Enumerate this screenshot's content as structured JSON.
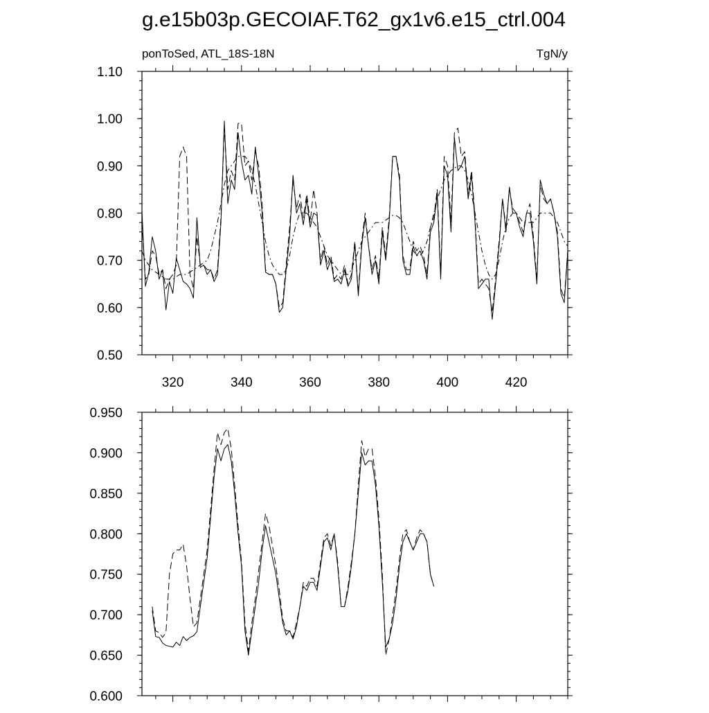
{
  "title": "g.e15b03p.GECOIAF.T62_gx1v6.e15_ctrl.004",
  "chart_data": [
    {
      "type": "line",
      "left_label": "ponToSed, ATL_18S-18N",
      "right_label": "TgN/y",
      "xlim": [
        311,
        435
      ],
      "ylim": [
        0.5,
        1.1
      ],
      "xticks": [
        320,
        340,
        360,
        380,
        400,
        420
      ],
      "xtick_labels": [
        "320",
        "340",
        "360",
        "380",
        "400",
        "420"
      ],
      "yticks": [
        0.5,
        0.6,
        0.7,
        0.8,
        0.9,
        1.0,
        1.1
      ],
      "ytick_labels": [
        "0.50",
        "0.60",
        "0.70",
        "0.80",
        "0.90",
        "1.00",
        "1.10"
      ],
      "x_start": 311,
      "x_step": 1,
      "series": [
        {
          "style": "solid",
          "values": [
            0.805,
            0.645,
            0.675,
            0.75,
            0.72,
            0.66,
            0.68,
            0.595,
            0.655,
            0.63,
            0.705,
            0.68,
            0.655,
            0.65,
            0.64,
            0.62,
            0.79,
            0.685,
            0.69,
            0.67,
            0.68,
            0.655,
            0.67,
            0.78,
            0.995,
            0.82,
            0.87,
            0.85,
            0.97,
            0.91,
            0.87,
            0.88,
            0.84,
            0.94,
            0.88,
            0.8,
            0.675,
            0.67,
            0.67,
            0.65,
            0.59,
            0.6,
            0.68,
            0.75,
            0.88,
            0.8,
            0.82,
            0.775,
            0.83,
            0.77,
            0.8,
            0.795,
            0.69,
            0.72,
            0.68,
            0.7,
            0.655,
            0.66,
            0.65,
            0.68,
            0.645,
            0.66,
            0.735,
            0.625,
            0.73,
            0.79,
            0.73,
            0.67,
            0.7,
            0.65,
            0.76,
            0.7,
            0.78,
            0.92,
            0.92,
            0.87,
            0.7,
            0.67,
            0.67,
            0.73,
            0.71,
            0.72,
            0.7,
            0.66,
            0.76,
            0.78,
            0.84,
            0.66,
            0.9,
            0.88,
            0.76,
            0.96,
            0.89,
            0.9,
            0.92,
            0.83,
            0.88,
            0.78,
            0.64,
            0.65,
            0.66,
            0.66,
            0.575,
            0.65,
            0.73,
            0.83,
            0.76,
            0.855,
            0.8,
            0.8,
            0.77,
            0.75,
            0.8,
            0.8,
            0.74,
            0.65,
            0.87,
            0.84,
            0.82,
            0.83,
            0.8,
            0.75,
            0.63,
            0.61,
            0.72
          ]
        },
        {
          "style": "dashed",
          "values": [
            0.78,
            0.66,
            0.67,
            0.72,
            0.71,
            0.67,
            0.68,
            0.64,
            0.66,
            0.67,
            0.69,
            0.92,
            0.94,
            0.92,
            0.67,
            0.64,
            0.75,
            0.69,
            0.69,
            0.68,
            0.68,
            0.66,
            0.68,
            0.79,
            0.98,
            0.85,
            0.89,
            0.87,
            0.99,
            0.99,
            0.9,
            0.91,
            0.87,
            0.93,
            0.9,
            0.82,
            0.68,
            0.67,
            0.67,
            0.65,
            0.6,
            0.61,
            0.69,
            0.77,
            0.87,
            0.81,
            0.84,
            0.79,
            0.84,
            0.78,
            0.85,
            0.8,
            0.7,
            0.73,
            0.69,
            0.71,
            0.66,
            0.67,
            0.66,
            0.69,
            0.65,
            0.67,
            0.74,
            0.63,
            0.74,
            0.8,
            0.73,
            0.68,
            0.71,
            0.66,
            0.77,
            0.71,
            0.79,
            0.92,
            0.92,
            0.88,
            0.71,
            0.68,
            0.68,
            0.74,
            0.72,
            0.73,
            0.71,
            0.67,
            0.77,
            0.79,
            0.85,
            0.67,
            0.92,
            0.9,
            0.78,
            0.97,
            0.98,
            0.92,
            0.93,
            0.84,
            0.89,
            0.79,
            0.65,
            0.66,
            0.65,
            0.64,
            0.59,
            0.66,
            0.74,
            0.83,
            0.77,
            0.85,
            0.81,
            0.8,
            0.78,
            0.76,
            0.8,
            0.82,
            0.75,
            0.66,
            0.86,
            0.83,
            0.82,
            0.83,
            0.8,
            0.76,
            0.64,
            0.62,
            0.72
          ]
        },
        {
          "style": "dashdot",
          "values": [
            0.72,
            0.7,
            0.69,
            0.68,
            0.675,
            0.67,
            0.665,
            0.66,
            0.66,
            0.66,
            0.665,
            0.67,
            0.67,
            0.67,
            0.675,
            0.68,
            0.685,
            0.69,
            0.695,
            0.7,
            0.72,
            0.75,
            0.78,
            0.82,
            0.86,
            0.89,
            0.9,
            0.91,
            0.92,
            0.92,
            0.92,
            0.91,
            0.89,
            0.86,
            0.82,
            0.78,
            0.74,
            0.71,
            0.69,
            0.68,
            0.67,
            0.67,
            0.68,
            0.71,
            0.75,
            0.78,
            0.8,
            0.8,
            0.8,
            0.79,
            0.78,
            0.77,
            0.75,
            0.73,
            0.71,
            0.7,
            0.69,
            0.68,
            0.67,
            0.67,
            0.67,
            0.68,
            0.7,
            0.72,
            0.74,
            0.75,
            0.76,
            0.77,
            0.78,
            0.78,
            0.78,
            0.785,
            0.79,
            0.795,
            0.795,
            0.79,
            0.78,
            0.76,
            0.74,
            0.72,
            0.71,
            0.71,
            0.72,
            0.74,
            0.77,
            0.8,
            0.83,
            0.85,
            0.87,
            0.88,
            0.89,
            0.895,
            0.9,
            0.9,
            0.89,
            0.87,
            0.84,
            0.8,
            0.76,
            0.72,
            0.69,
            0.67,
            0.66,
            0.67,
            0.7,
            0.74,
            0.77,
            0.79,
            0.8,
            0.8,
            0.79,
            0.78,
            0.78,
            0.78,
            0.78,
            0.79,
            0.8,
            0.8,
            0.8,
            0.8,
            0.79,
            0.78,
            0.76,
            0.74,
            0.73
          ]
        }
      ]
    },
    {
      "type": "line",
      "xlim": [
        311,
        435
      ],
      "ylim": [
        0.6,
        0.95
      ],
      "xticks": [
        320,
        340,
        360,
        380,
        400,
        420
      ],
      "yticks": [
        0.6,
        0.65,
        0.7,
        0.75,
        0.8,
        0.85,
        0.9,
        0.95
      ],
      "ytick_labels": [
        "0.600",
        "0.650",
        "0.700",
        "0.750",
        "0.800",
        "0.850",
        "0.900",
        "0.950"
      ],
      "x_start": 314,
      "x_step": 1,
      "series": [
        {
          "style": "solid",
          "values": [
            0.705,
            0.673,
            0.672,
            0.665,
            0.662,
            0.661,
            0.66,
            0.666,
            0.662,
            0.673,
            0.668,
            0.672,
            0.674,
            0.679,
            0.71,
            0.74,
            0.77,
            0.82,
            0.87,
            0.905,
            0.89,
            0.905,
            0.91,
            0.89,
            0.85,
            0.8,
            0.76,
            0.68,
            0.65,
            0.68,
            0.71,
            0.74,
            0.78,
            0.81,
            0.79,
            0.77,
            0.75,
            0.72,
            0.69,
            0.675,
            0.68,
            0.67,
            0.685,
            0.71,
            0.735,
            0.73,
            0.74,
            0.74,
            0.73,
            0.76,
            0.79,
            0.795,
            0.78,
            0.8,
            0.76,
            0.71,
            0.71,
            0.73,
            0.76,
            0.8,
            0.85,
            0.9,
            0.885,
            0.89,
            0.89,
            0.86,
            0.81,
            0.74,
            0.66,
            0.67,
            0.69,
            0.72,
            0.76,
            0.79,
            0.8,
            0.79,
            0.78,
            0.79,
            0.8,
            0.8,
            0.79,
            0.75,
            0.735
          ]
        },
        {
          "style": "dashed",
          "values": [
            0.71,
            0.68,
            0.678,
            0.672,
            0.678,
            0.75,
            0.775,
            0.78,
            0.78,
            0.787,
            0.76,
            0.72,
            0.685,
            0.69,
            0.72,
            0.75,
            0.78,
            0.83,
            0.88,
            0.925,
            0.91,
            0.925,
            0.93,
            0.905,
            0.86,
            0.81,
            0.765,
            0.69,
            0.655,
            0.69,
            0.72,
            0.755,
            0.79,
            0.825,
            0.81,
            0.785,
            0.76,
            0.73,
            0.695,
            0.68,
            0.68,
            0.672,
            0.69,
            0.71,
            0.74,
            0.735,
            0.745,
            0.745,
            0.735,
            0.765,
            0.795,
            0.8,
            0.785,
            0.8,
            0.765,
            0.71,
            0.71,
            0.735,
            0.765,
            0.8,
            0.86,
            0.915,
            0.895,
            0.905,
            0.905,
            0.87,
            0.82,
            0.75,
            0.65,
            0.67,
            0.7,
            0.73,
            0.77,
            0.8,
            0.805,
            0.79,
            0.78,
            0.795,
            0.805,
            0.8,
            0.79,
            0.75,
            0.735
          ]
        }
      ]
    }
  ]
}
